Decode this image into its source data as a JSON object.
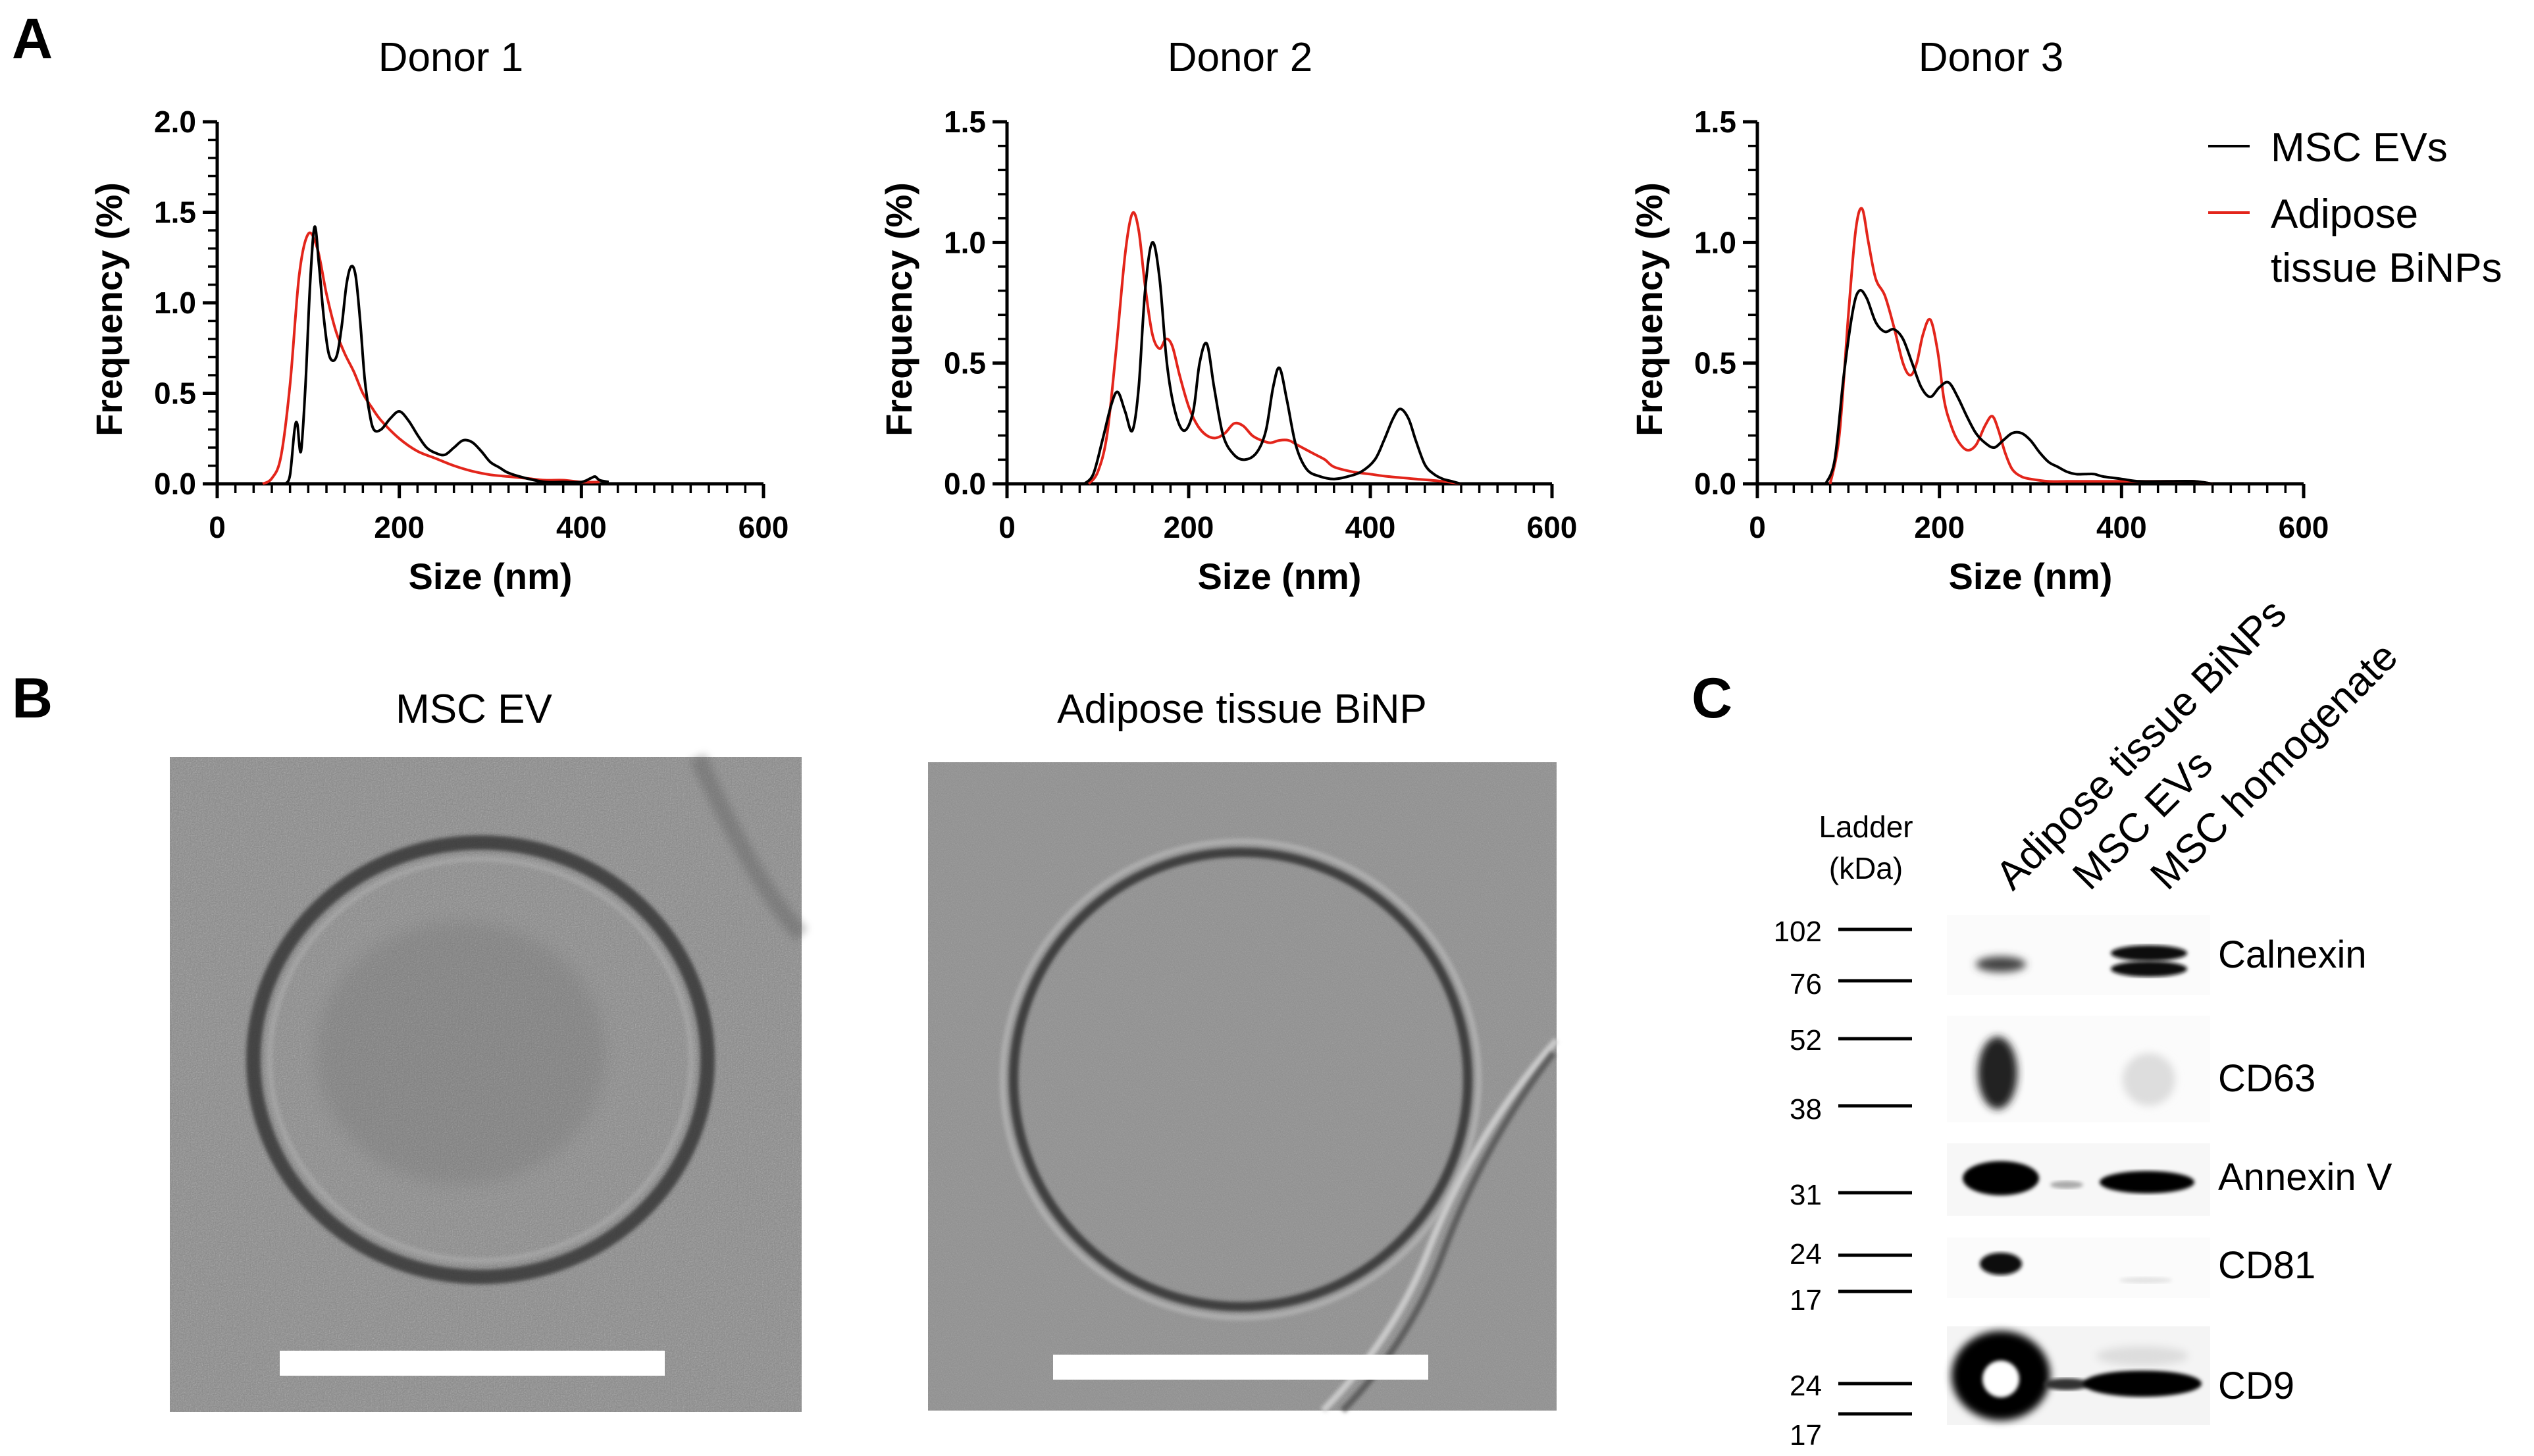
{
  "panel_labels": {
    "a": "A",
    "b": "B",
    "c": "C"
  },
  "colors": {
    "msc": "#000000",
    "adipose": "#e3251b",
    "em_bg": "#8a8a8a",
    "scale_bar": "#ffffff"
  },
  "legend": {
    "msc": "MSC EVs",
    "adipose_line1": "Adipose",
    "adipose_line2": "tissue BiNPs"
  },
  "chart_data": [
    {
      "type": "line",
      "title": "Donor 1",
      "xlabel": "Size (nm)",
      "ylabel": "Frequency (%)",
      "xlim": [
        0,
        600
      ],
      "ylim": [
        0,
        2.0
      ],
      "xticks": [
        "0",
        "200",
        "400",
        "600"
      ],
      "yticks": [
        "0.0",
        "0.5",
        "1.0",
        "1.5",
        "2.0"
      ],
      "series": [
        {
          "name": "MSC EVs",
          "color": "#000000",
          "x": [
            75,
            80,
            85,
            88,
            92,
            97,
            102,
            107,
            112,
            117,
            122,
            127,
            132,
            137,
            142,
            147,
            152,
            157,
            162,
            167,
            172,
            180,
            190,
            200,
            210,
            220,
            230,
            240,
            250,
            260,
            270,
            280,
            290,
            300,
            310,
            320,
            340,
            360,
            380,
            400,
            410,
            415,
            420,
            430
          ],
          "y": [
            0,
            0.05,
            0.3,
            0.33,
            0.18,
            0.55,
            1.1,
            1.42,
            1.2,
            0.92,
            0.73,
            0.68,
            0.72,
            0.88,
            1.1,
            1.2,
            1.15,
            0.9,
            0.58,
            0.4,
            0.3,
            0.3,
            0.36,
            0.4,
            0.35,
            0.27,
            0.2,
            0.17,
            0.16,
            0.2,
            0.24,
            0.23,
            0.18,
            0.12,
            0.09,
            0.06,
            0.03,
            0.01,
            0.01,
            0.01,
            0.03,
            0.04,
            0.02,
            0.01
          ]
        },
        {
          "name": "Adipose tissue BiNPs",
          "color": "#e3251b",
          "x": [
            50,
            60,
            70,
            80,
            90,
            100,
            110,
            120,
            130,
            140,
            150,
            160,
            170,
            180,
            200,
            220,
            240,
            260,
            280,
            300,
            320,
            340,
            360,
            380,
            400,
            420
          ],
          "y": [
            0,
            0.03,
            0.15,
            0.55,
            1.15,
            1.38,
            1.3,
            1.05,
            0.85,
            0.72,
            0.62,
            0.5,
            0.42,
            0.35,
            0.25,
            0.18,
            0.14,
            0.1,
            0.07,
            0.05,
            0.04,
            0.03,
            0.02,
            0.02,
            0.01,
            0.01
          ]
        }
      ]
    },
    {
      "type": "line",
      "title": "Donor 2",
      "xlabel": "Size (nm)",
      "ylabel": "Frequency (%)",
      "xlim": [
        0,
        600
      ],
      "ylim": [
        0,
        1.5
      ],
      "xticks": [
        "0",
        "200",
        "400",
        "600"
      ],
      "yticks": [
        "0.0",
        "0.5",
        "1.0",
        "1.5"
      ],
      "series": [
        {
          "name": "MSC EVs",
          "color": "#000000",
          "x": [
            85,
            95,
            105,
            115,
            122,
            130,
            138,
            145,
            152,
            160,
            168,
            176,
            185,
            195,
            205,
            212,
            220,
            228,
            238,
            250,
            262,
            275,
            285,
            293,
            300,
            308,
            318,
            330,
            345,
            360,
            375,
            390,
            405,
            415,
            425,
            433,
            442,
            450,
            460,
            470,
            480,
            490,
            500
          ],
          "y": [
            0,
            0.04,
            0.18,
            0.33,
            0.38,
            0.3,
            0.22,
            0.4,
            0.8,
            1.0,
            0.85,
            0.5,
            0.3,
            0.22,
            0.3,
            0.5,
            0.58,
            0.4,
            0.2,
            0.12,
            0.1,
            0.13,
            0.22,
            0.4,
            0.48,
            0.35,
            0.16,
            0.06,
            0.03,
            0.02,
            0.03,
            0.05,
            0.1,
            0.18,
            0.27,
            0.31,
            0.27,
            0.18,
            0.08,
            0.04,
            0.02,
            0.01,
            0
          ]
        },
        {
          "name": "Adipose tissue BiNPs",
          "color": "#e3251b",
          "x": [
            90,
            100,
            110,
            120,
            130,
            138,
            145,
            152,
            160,
            168,
            175,
            182,
            190,
            200,
            210,
            220,
            230,
            240,
            250,
            260,
            270,
            280,
            290,
            300,
            310,
            320,
            330,
            340,
            350,
            360,
            380,
            400,
            420,
            450,
            480,
            500
          ],
          "y": [
            0,
            0.05,
            0.2,
            0.55,
            0.95,
            1.12,
            1.05,
            0.82,
            0.62,
            0.56,
            0.6,
            0.57,
            0.45,
            0.32,
            0.24,
            0.2,
            0.19,
            0.21,
            0.25,
            0.24,
            0.2,
            0.18,
            0.17,
            0.18,
            0.18,
            0.16,
            0.14,
            0.12,
            0.1,
            0.07,
            0.05,
            0.04,
            0.03,
            0.02,
            0.01,
            0
          ]
        }
      ]
    },
    {
      "type": "line",
      "title": "Donor 3",
      "xlabel": "Size (nm)",
      "ylabel": "Frequency (%)",
      "xlim": [
        0,
        600
      ],
      "ylim": [
        0,
        1.5
      ],
      "xticks": [
        "0",
        "200",
        "400",
        "600"
      ],
      "yticks": [
        "0.0",
        "0.5",
        "1.0",
        "1.5"
      ],
      "series": [
        {
          "name": "MSC EVs",
          "color": "#000000",
          "x": [
            75,
            85,
            95,
            105,
            112,
            120,
            130,
            140,
            150,
            160,
            170,
            180,
            190,
            200,
            210,
            220,
            230,
            240,
            250,
            260,
            270,
            280,
            290,
            300,
            310,
            320,
            330,
            340,
            350,
            360,
            370,
            380,
            400,
            420,
            450,
            480,
            500
          ],
          "y": [
            0,
            0.1,
            0.45,
            0.72,
            0.8,
            0.77,
            0.67,
            0.63,
            0.64,
            0.6,
            0.5,
            0.4,
            0.36,
            0.4,
            0.42,
            0.36,
            0.28,
            0.21,
            0.17,
            0.15,
            0.18,
            0.21,
            0.21,
            0.18,
            0.13,
            0.09,
            0.07,
            0.05,
            0.04,
            0.04,
            0.04,
            0.03,
            0.02,
            0.01,
            0.01,
            0.01,
            0
          ]
        },
        {
          "name": "Adipose tissue BiNPs",
          "color": "#e3251b",
          "x": [
            80,
            90,
            100,
            108,
            115,
            122,
            130,
            140,
            150,
            160,
            168,
            175,
            182,
            190,
            198,
            205,
            212,
            220,
            230,
            240,
            250,
            258,
            265,
            272,
            280,
            290,
            300,
            320,
            340,
            360,
            380,
            400,
            420,
            440,
            460,
            480,
            500
          ],
          "y": [
            0,
            0.2,
            0.7,
            1.05,
            1.14,
            1.0,
            0.85,
            0.78,
            0.65,
            0.5,
            0.45,
            0.5,
            0.62,
            0.68,
            0.55,
            0.35,
            0.25,
            0.18,
            0.14,
            0.16,
            0.24,
            0.28,
            0.22,
            0.13,
            0.06,
            0.03,
            0.02,
            0.01,
            0.01,
            0.01,
            0.01,
            0.01,
            0.01,
            0.01,
            0.01,
            0.01,
            0
          ]
        }
      ]
    }
  ],
  "em": {
    "left_title": "MSC EV",
    "right_title": "Adipose tissue BiNP"
  },
  "blot": {
    "ladder_line1": "Ladder",
    "ladder_line2": "(kDa)",
    "lanes": [
      "Adipose tissue BiNPs",
      "MSC EVs",
      "MSC homogenate"
    ],
    "proteins": [
      "Calnexin",
      "CD63",
      "Annexin V",
      "CD81",
      "CD9"
    ],
    "markers": [
      {
        "label": "102",
        "row": 0
      },
      {
        "label": "76",
        "row": 0
      },
      {
        "label": "52",
        "row": 1
      },
      {
        "label": "38",
        "row": 1
      },
      {
        "label": "31",
        "row": 2
      },
      {
        "label": "24",
        "row": 3
      },
      {
        "label": "17",
        "row": 3
      },
      {
        "label": "24",
        "row": 4
      },
      {
        "label": "17",
        "row": 4
      }
    ]
  }
}
